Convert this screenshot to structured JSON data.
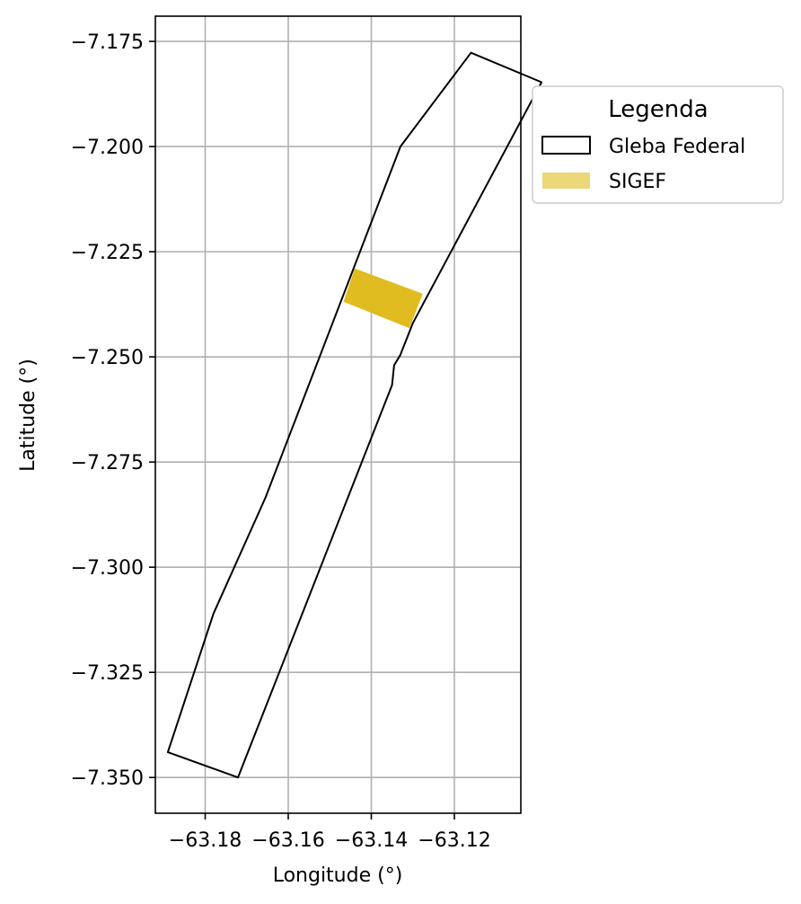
{
  "chart_data": {
    "type": "map",
    "xlabel": "Longitude (°)",
    "ylabel": "Latitude (°)",
    "xlim": [
      -63.192,
      -63.104
    ],
    "ylim": [
      -7.3585,
      -7.169
    ],
    "grid": true,
    "x_ticks": [
      {
        "value": -63.18,
        "label": "−63.18"
      },
      {
        "value": -63.16,
        "label": "−63.16"
      },
      {
        "value": -63.14,
        "label": "−63.14"
      },
      {
        "value": -63.12,
        "label": "−63.12"
      }
    ],
    "y_ticks": [
      {
        "value": -7.175,
        "label": "−7.175"
      },
      {
        "value": -7.2,
        "label": "−7.200"
      },
      {
        "value": -7.225,
        "label": "−7.225"
      },
      {
        "value": -7.25,
        "label": "−7.250"
      },
      {
        "value": -7.275,
        "label": "−7.275"
      },
      {
        "value": -7.3,
        "label": "−7.300"
      },
      {
        "value": -7.325,
        "label": "−7.325"
      },
      {
        "value": -7.35,
        "label": "−7.350"
      }
    ],
    "legend": {
      "title": "Legenda",
      "placement": "outside-right-top",
      "entries": [
        {
          "label": "Gleba Federal",
          "style": "outline",
          "color": "#000000"
        },
        {
          "label": "SIGEF",
          "style": "fill",
          "color": "#E0BC20",
          "alpha": 0.6
        }
      ]
    },
    "layers": [
      {
        "name": "Gleba Federal",
        "style": "outline",
        "stroke": "#000000",
        "polygon": [
          [
            -63.116,
            -7.1777
          ],
          [
            -63.099,
            -7.1847
          ],
          [
            -63.13,
            -7.242
          ],
          [
            -63.133,
            -7.2495
          ],
          [
            -63.1345,
            -7.252
          ],
          [
            -63.135,
            -7.2567
          ],
          [
            -63.1721,
            -7.35
          ],
          [
            -63.189,
            -7.344
          ],
          [
            -63.178,
            -7.311
          ],
          [
            -63.1655,
            -7.2835
          ],
          [
            -63.133,
            -7.2
          ]
        ]
      },
      {
        "name": "SIGEF",
        "style": "fill",
        "fill": "#E0BC20",
        "polygon": [
          [
            -63.144,
            -7.229
          ],
          [
            -63.1276,
            -7.235
          ],
          [
            -63.1308,
            -7.2432
          ],
          [
            -63.1467,
            -7.2369
          ]
        ]
      }
    ]
  }
}
